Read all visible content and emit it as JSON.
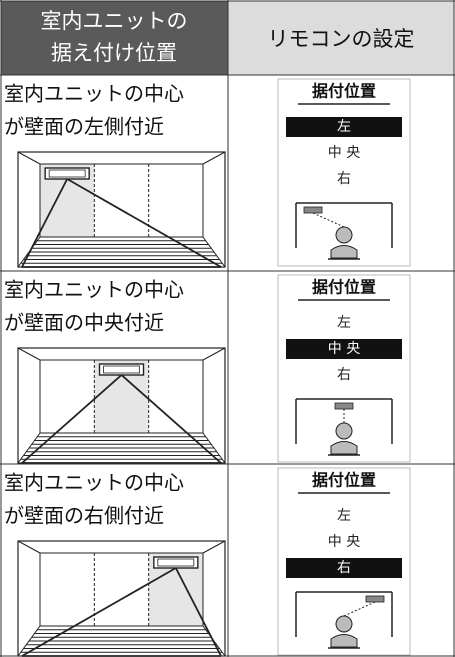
{
  "header": {
    "col1": [
      "室内ユニットの",
      "据え付け位置"
    ],
    "col2": "リモコンの設定"
  },
  "rows": [
    {
      "text": [
        "室内ユニットの中心",
        "が壁面の左側付近"
      ],
      "remote_title": "据付位置",
      "options": [
        "左",
        "中 央",
        "右"
      ],
      "selected": 0
    },
    {
      "text": [
        "室内ユニットの中心",
        "が壁面の中央付近"
      ],
      "remote_title": "据付位置",
      "options": [
        "左",
        "中 央",
        "右"
      ],
      "selected": 1
    },
    {
      "text": [
        "室内ユニットの中心",
        "が壁面の右側付近"
      ],
      "remote_title": "据付位置",
      "options": [
        "左",
        "中 央",
        "右"
      ],
      "selected": 2
    }
  ]
}
